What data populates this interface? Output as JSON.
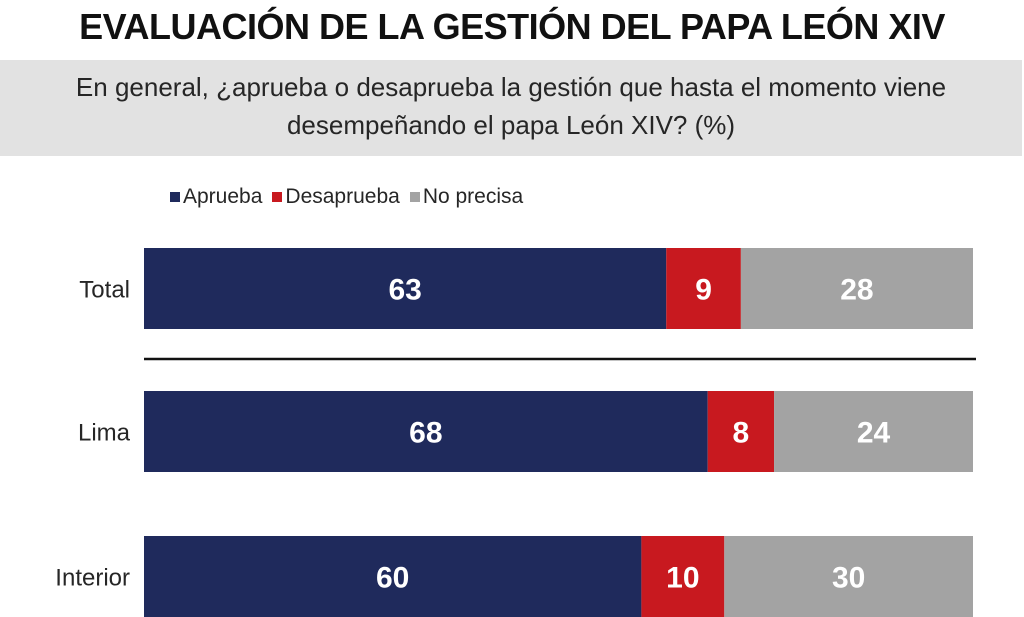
{
  "header": {
    "title": "EVALUACIÓN DE LA GESTIÓN DEL PAPA LEÓN XIV",
    "subtitle": "En general, ¿aprueba o desaprueba la gestión que hasta el momento viene desempeñando el papa León XIV? (%)"
  },
  "chart_data": {
    "type": "bar",
    "orientation": "horizontal",
    "stacked": true,
    "title": "EVALUACIÓN DE LA GESTIÓN DEL PAPA LEÓN XIV",
    "subtitle": "En general, ¿aprueba o desaprueba la gestión que hasta el momento viene desempeñando el papa León XIV? (%)",
    "categories": [
      "Total",
      "Lima",
      "Interior"
    ],
    "series": [
      {
        "name": "Aprueba",
        "color": "#1f2a5c",
        "values": [
          63,
          68,
          60
        ]
      },
      {
        "name": "Desaprueba",
        "color": "#c8191f",
        "values": [
          9,
          8,
          10
        ]
      },
      {
        "name": "No precisa",
        "color": "#a3a3a3",
        "values": [
          28,
          24,
          30
        ]
      }
    ],
    "xlim": [
      0,
      100
    ],
    "grid": false,
    "legend_position": "top-left",
    "separator_after_first_row": true
  }
}
